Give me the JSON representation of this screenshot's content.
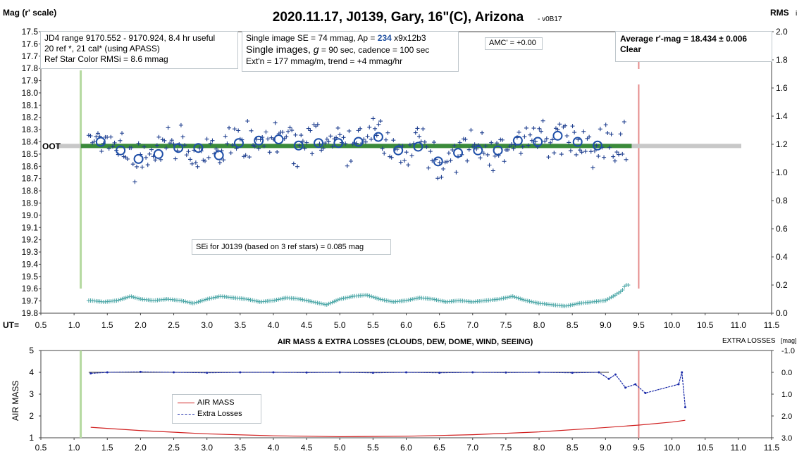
{
  "header": {
    "title": "2020.11.17, J0139, Gary, 16\"(C), Arizona",
    "version": "- v0B17",
    "y_left_label": "Mag (r' scale)",
    "y_right_label": "RMS",
    "y_right_suffix": "i",
    "x_prefix": "UT="
  },
  "boxes": {
    "info_left": [
      "JD4 range 9170.552 - 9170.924, 8.4 hr useful",
      "20 ref *, 21 cal* (using APASS)",
      "Ref Star Color RMSi = 8.6 mmag"
    ],
    "info_mid_1a": "Single image SE = 74 mmag, Ap = ",
    "info_mid_1b": "234",
    "info_mid_1c": " x9x12b3",
    "info_mid_2a": "Single images, ",
    "info_mid_2b": "g",
    "info_mid_2c": " = 90 sec, cadence = 100 sec",
    "info_mid_3": "Ext'n = 177 mmag/m, trend = +4 mmag/hr",
    "amc": "AMC' = +0.00",
    "avg_line": "Average r'-mag =  18.434 ± 0.006",
    "avg_cond": "Clear",
    "sei": "SEi for J0139 (based on 3 ref stars) = 0.085 mag",
    "oot": "OOT"
  },
  "lower": {
    "title": "AIR MASS & EXTRA LOSSES (CLOUDS, DEW, DOME, WIND, SEEING)",
    "right_label": "EXTRA LOSSES",
    "right_unit": "[mag]",
    "left_label": "AIR MASS",
    "legend_air": "AIR MASS",
    "legend_extra": "Extra Losses"
  },
  "colors": {
    "points": "#1f3f8f",
    "circles": "#1f4fa8",
    "oot_line": "#3a8a3a",
    "oot_band": "#c8c8c8",
    "rms": "#4aa6a6",
    "ingress": "#b5d9a0",
    "egress": "#e58a8a",
    "airmass": "#d02020",
    "extra": "#1a2aa8"
  },
  "chart_data": [
    {
      "type": "scatter",
      "title": "2020.11.17, J0139, Gary, 16\"(C), Arizona",
      "xlabel": "UT",
      "ylabel": "Mag (r' scale)",
      "y2label": "RMS i",
      "xlim": [
        0.5,
        11.5
      ],
      "ylim": [
        19.8,
        17.5
      ],
      "y2lim": [
        0.0,
        2.0
      ],
      "x_ticks": [
        "0.5",
        "1.0",
        "1.5",
        "2.0",
        "2.5",
        "3.0",
        "3.5",
        "4.0",
        "4.5",
        "5.0",
        "5.5",
        "6.0",
        "6.5",
        "7.0",
        "7.5",
        "8.0",
        "8.5",
        "9.0",
        "9.5",
        "10.0",
        "10.5",
        "11.0",
        "11.5"
      ],
      "y_ticks": [
        "17.5",
        "17.6",
        "17.7",
        "17.8",
        "17.9",
        "18.0",
        "18.1",
        "18.2",
        "18.3",
        "18.4",
        "18.5",
        "18.6",
        "18.7",
        "18.8",
        "18.9",
        "19.0",
        "19.1",
        "19.2",
        "19.3",
        "19.4",
        "19.5",
        "19.6",
        "19.7",
        "19.8"
      ],
      "y2_ticks": [
        "0.0",
        "0.2",
        "0.4",
        "0.6",
        "0.8",
        "1.0",
        "1.2",
        "1.4",
        "1.6",
        "1.8",
        "2.0"
      ],
      "oot_level": 18.434,
      "oot_x": [
        1.1,
        9.5
      ],
      "ingress_ut": 1.1,
      "egress_ut": 9.5,
      "averages": [
        {
          "x": 1.4,
          "y": 18.4
        },
        {
          "x": 1.7,
          "y": 18.47
        },
        {
          "x": 1.97,
          "y": 18.54
        },
        {
          "x": 2.27,
          "y": 18.5
        },
        {
          "x": 2.57,
          "y": 18.45
        },
        {
          "x": 2.87,
          "y": 18.45
        },
        {
          "x": 3.18,
          "y": 18.51
        },
        {
          "x": 3.48,
          "y": 18.41
        },
        {
          "x": 3.78,
          "y": 18.39
        },
        {
          "x": 4.08,
          "y": 18.38
        },
        {
          "x": 4.38,
          "y": 18.43
        },
        {
          "x": 4.68,
          "y": 18.41
        },
        {
          "x": 4.98,
          "y": 18.41
        },
        {
          "x": 5.28,
          "y": 18.4
        },
        {
          "x": 5.58,
          "y": 18.36
        },
        {
          "x": 5.88,
          "y": 18.47
        },
        {
          "x": 6.18,
          "y": 18.44
        },
        {
          "x": 6.48,
          "y": 18.56
        },
        {
          "x": 6.78,
          "y": 18.49
        },
        {
          "x": 7.08,
          "y": 18.47
        },
        {
          "x": 7.38,
          "y": 18.47
        },
        {
          "x": 7.68,
          "y": 18.39
        },
        {
          "x": 7.98,
          "y": 18.4
        },
        {
          "x": 8.28,
          "y": 18.35
        },
        {
          "x": 8.58,
          "y": 18.4
        },
        {
          "x": 8.88,
          "y": 18.43
        }
      ],
      "rms_points": [
        {
          "x": 1.25,
          "y": 0.09
        },
        {
          "x": 1.45,
          "y": 0.08
        },
        {
          "x": 1.65,
          "y": 0.09
        },
        {
          "x": 1.85,
          "y": 0.12
        },
        {
          "x": 2.0,
          "y": 0.1
        },
        {
          "x": 2.2,
          "y": 0.09
        },
        {
          "x": 2.4,
          "y": 0.1
        },
        {
          "x": 2.6,
          "y": 0.09
        },
        {
          "x": 2.8,
          "y": 0.07
        },
        {
          "x": 3.0,
          "y": 0.1
        },
        {
          "x": 3.2,
          "y": 0.12
        },
        {
          "x": 3.4,
          "y": 0.11
        },
        {
          "x": 3.6,
          "y": 0.1
        },
        {
          "x": 3.8,
          "y": 0.08
        },
        {
          "x": 4.0,
          "y": 0.09
        },
        {
          "x": 4.2,
          "y": 0.11
        },
        {
          "x": 4.4,
          "y": 0.1
        },
        {
          "x": 4.6,
          "y": 0.08
        },
        {
          "x": 4.8,
          "y": 0.06
        },
        {
          "x": 5.0,
          "y": 0.1
        },
        {
          "x": 5.2,
          "y": 0.12
        },
        {
          "x": 5.4,
          "y": 0.13
        },
        {
          "x": 5.6,
          "y": 0.1
        },
        {
          "x": 5.8,
          "y": 0.08
        },
        {
          "x": 6.0,
          "y": 0.09
        },
        {
          "x": 6.2,
          "y": 0.11
        },
        {
          "x": 6.4,
          "y": 0.1
        },
        {
          "x": 6.6,
          "y": 0.08
        },
        {
          "x": 6.8,
          "y": 0.09
        },
        {
          "x": 7.0,
          "y": 0.08
        },
        {
          "x": 7.2,
          "y": 0.09
        },
        {
          "x": 7.4,
          "y": 0.1
        },
        {
          "x": 7.6,
          "y": 0.12
        },
        {
          "x": 7.8,
          "y": 0.09
        },
        {
          "x": 8.0,
          "y": 0.07
        },
        {
          "x": 8.2,
          "y": 0.06
        },
        {
          "x": 8.4,
          "y": 0.05
        },
        {
          "x": 8.6,
          "y": 0.07
        },
        {
          "x": 8.8,
          "y": 0.08
        },
        {
          "x": 9.0,
          "y": 0.09
        },
        {
          "x": 9.15,
          "y": 0.13
        },
        {
          "x": 9.25,
          "y": 0.16
        },
        {
          "x": 9.3,
          "y": 0.2
        }
      ]
    },
    {
      "type": "line",
      "title": "AIR MASS & EXTRA LOSSES (CLOUDS, DEW, DOME, WIND, SEEING)",
      "ylabel": "AIR MASS",
      "y2label": "EXTRA LOSSES [mag]",
      "xlim": [
        0.5,
        11.5
      ],
      "ylim": [
        1,
        5
      ],
      "y2lim": [
        3.0,
        -1.0
      ],
      "x_ticks": [
        "0.5",
        "1.0",
        "1.5",
        "2.0",
        "2.5",
        "3.0",
        "3.5",
        "4.0",
        "4.5",
        "5.0",
        "5.5",
        "6.0",
        "6.5",
        "7.0",
        "7.5",
        "8.0",
        "8.5",
        "9.0",
        "9.5",
        "10.0",
        "10.5",
        "11.0",
        "11.5"
      ],
      "y_ticks": [
        "1",
        "2",
        "3",
        "4",
        "5"
      ],
      "y2_ticks": [
        "3.0",
        "2.0",
        "1.0",
        "0.0",
        "-1.0"
      ],
      "series": [
        {
          "name": "AIR MASS",
          "points": [
            {
              "x": 1.25,
              "y": 1.48
            },
            {
              "x": 2.0,
              "y": 1.33
            },
            {
              "x": 3.0,
              "y": 1.18
            },
            {
              "x": 4.0,
              "y": 1.09
            },
            {
              "x": 5.0,
              "y": 1.05
            },
            {
              "x": 6.0,
              "y": 1.07
            },
            {
              "x": 7.0,
              "y": 1.14
            },
            {
              "x": 8.0,
              "y": 1.27
            },
            {
              "x": 9.0,
              "y": 1.47
            },
            {
              "x": 9.5,
              "y": 1.58
            },
            {
              "x": 10.0,
              "y": 1.72
            },
            {
              "x": 10.2,
              "y": 1.8
            }
          ]
        },
        {
          "name": "Extra Losses",
          "points": [
            {
              "x": 1.25,
              "y": 0.05
            },
            {
              "x": 1.5,
              "y": 0.0
            },
            {
              "x": 2.0,
              "y": -0.02
            },
            {
              "x": 2.5,
              "y": 0.0
            },
            {
              "x": 3.0,
              "y": 0.02
            },
            {
              "x": 3.5,
              "y": 0.0
            },
            {
              "x": 4.0,
              "y": 0.0
            },
            {
              "x": 4.5,
              "y": 0.01
            },
            {
              "x": 5.0,
              "y": 0.0
            },
            {
              "x": 5.5,
              "y": 0.02
            },
            {
              "x": 6.0,
              "y": 0.0
            },
            {
              "x": 6.5,
              "y": 0.02
            },
            {
              "x": 7.0,
              "y": 0.0
            },
            {
              "x": 7.5,
              "y": 0.01
            },
            {
              "x": 8.0,
              "y": 0.0
            },
            {
              "x": 8.5,
              "y": 0.02
            },
            {
              "x": 8.9,
              "y": 0.0
            },
            {
              "x": 9.05,
              "y": 0.3
            },
            {
              "x": 9.15,
              "y": 0.1
            },
            {
              "x": 9.3,
              "y": 0.7
            },
            {
              "x": 9.45,
              "y": 0.55
            },
            {
              "x": 9.6,
              "y": 0.95
            },
            {
              "x": 10.1,
              "y": 0.55
            },
            {
              "x": 10.15,
              "y": 0.0
            },
            {
              "x": 10.2,
              "y": 1.6
            }
          ]
        }
      ],
      "legend": "center-left"
    }
  ]
}
